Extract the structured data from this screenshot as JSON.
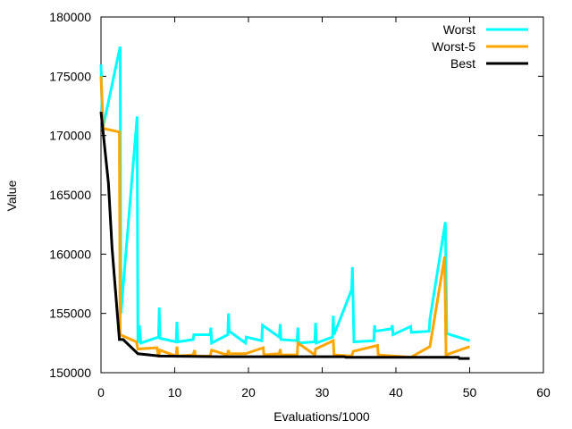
{
  "chart_data": {
    "type": "line",
    "xlabel": "Evaluations/1000",
    "ylabel": "Value",
    "xlim": [
      0,
      60
    ],
    "ylim": [
      150000,
      180000
    ],
    "xticks": [
      "0",
      "10",
      "20",
      "30",
      "40",
      "50",
      "60"
    ],
    "yticks": [
      "150000",
      "155000",
      "160000",
      "165000",
      "170000",
      "175000",
      "180000"
    ],
    "grid": false,
    "legend_position": "top-right",
    "series": [
      {
        "name": "Worst",
        "color": "#00ffff",
        "points": [
          [
            0,
            176000
          ],
          [
            0.2,
            170500
          ],
          [
            2.6,
            177500
          ],
          [
            2.7,
            155000
          ],
          [
            4.9,
            171600
          ],
          [
            5.0,
            152500
          ],
          [
            5.2,
            154000
          ],
          [
            5.4,
            152500
          ],
          [
            7.8,
            153000
          ],
          [
            7.9,
            155500
          ],
          [
            8.0,
            152900
          ],
          [
            10.2,
            152600
          ],
          [
            10.3,
            154300
          ],
          [
            10.4,
            152600
          ],
          [
            12.5,
            152800
          ],
          [
            12.6,
            153200
          ],
          [
            14.8,
            153200
          ],
          [
            14.9,
            153800
          ],
          [
            15.0,
            152500
          ],
          [
            17.2,
            153200
          ],
          [
            17.3,
            155000
          ],
          [
            17.4,
            153500
          ],
          [
            19.6,
            152500
          ],
          [
            19.7,
            153000
          ],
          [
            21.8,
            152700
          ],
          [
            21.9,
            154000
          ],
          [
            24.2,
            153000
          ],
          [
            24.3,
            154100
          ],
          [
            24.4,
            152800
          ],
          [
            26.6,
            152700
          ],
          [
            26.7,
            153800
          ],
          [
            26.8,
            152500
          ],
          [
            29.0,
            152600
          ],
          [
            29.1,
            154200
          ],
          [
            29.2,
            152500
          ],
          [
            31.4,
            153000
          ],
          [
            31.5,
            154800
          ],
          [
            31.6,
            153200
          ],
          [
            34.0,
            157000
          ],
          [
            34.1,
            158900
          ],
          [
            34.3,
            152600
          ],
          [
            37.0,
            152700
          ],
          [
            37.1,
            154000
          ],
          [
            37.2,
            153500
          ],
          [
            39.4,
            153700
          ],
          [
            39.5,
            154000
          ],
          [
            39.6,
            153200
          ],
          [
            42.0,
            153900
          ],
          [
            42.1,
            153400
          ],
          [
            44.5,
            153500
          ],
          [
            44.6,
            154500
          ],
          [
            46.7,
            162700
          ],
          [
            46.9,
            153300
          ],
          [
            50.0,
            152700
          ]
        ]
      },
      {
        "name": "Worst-5",
        "color": "#ffa500",
        "points": [
          [
            0,
            175000
          ],
          [
            0.3,
            170600
          ],
          [
            2.5,
            170300
          ],
          [
            2.6,
            153200
          ],
          [
            4.8,
            152600
          ],
          [
            5.0,
            152000
          ],
          [
            7.6,
            152100
          ],
          [
            7.8,
            151300
          ],
          [
            8.0,
            151900
          ],
          [
            10.2,
            151400
          ],
          [
            10.3,
            152200
          ],
          [
            10.4,
            151400
          ],
          [
            12.5,
            151500
          ],
          [
            12.7,
            151900
          ],
          [
            12.8,
            151400
          ],
          [
            14.8,
            151400
          ],
          [
            15.0,
            151900
          ],
          [
            17.1,
            151500
          ],
          [
            17.3,
            151900
          ],
          [
            17.4,
            151600
          ],
          [
            19.6,
            151600
          ],
          [
            22.0,
            152100
          ],
          [
            22.1,
            151500
          ],
          [
            24.2,
            151600
          ],
          [
            24.3,
            152000
          ],
          [
            24.4,
            151500
          ],
          [
            26.6,
            151500
          ],
          [
            26.7,
            152500
          ],
          [
            29.0,
            151500
          ],
          [
            29.1,
            152000
          ],
          [
            31.5,
            152700
          ],
          [
            31.6,
            151500
          ],
          [
            34.0,
            151400
          ],
          [
            34.2,
            151800
          ],
          [
            37.5,
            152300
          ],
          [
            37.6,
            151500
          ],
          [
            42.0,
            151300
          ],
          [
            44.6,
            152200
          ],
          [
            46.6,
            159800
          ],
          [
            46.8,
            151500
          ],
          [
            50.0,
            152200
          ]
        ]
      },
      {
        "name": "Best",
        "color": "#000000",
        "points": [
          [
            0,
            172000
          ],
          [
            1.0,
            166000
          ],
          [
            1.5,
            160500
          ],
          [
            2.5,
            152800
          ],
          [
            3.0,
            152800
          ],
          [
            5.0,
            151600
          ],
          [
            8.0,
            151400
          ],
          [
            16.0,
            151350
          ],
          [
            33.0,
            151350
          ],
          [
            33.2,
            151300
          ],
          [
            48.5,
            151300
          ],
          [
            48.6,
            151200
          ],
          [
            50.0,
            151200
          ]
        ]
      }
    ]
  }
}
